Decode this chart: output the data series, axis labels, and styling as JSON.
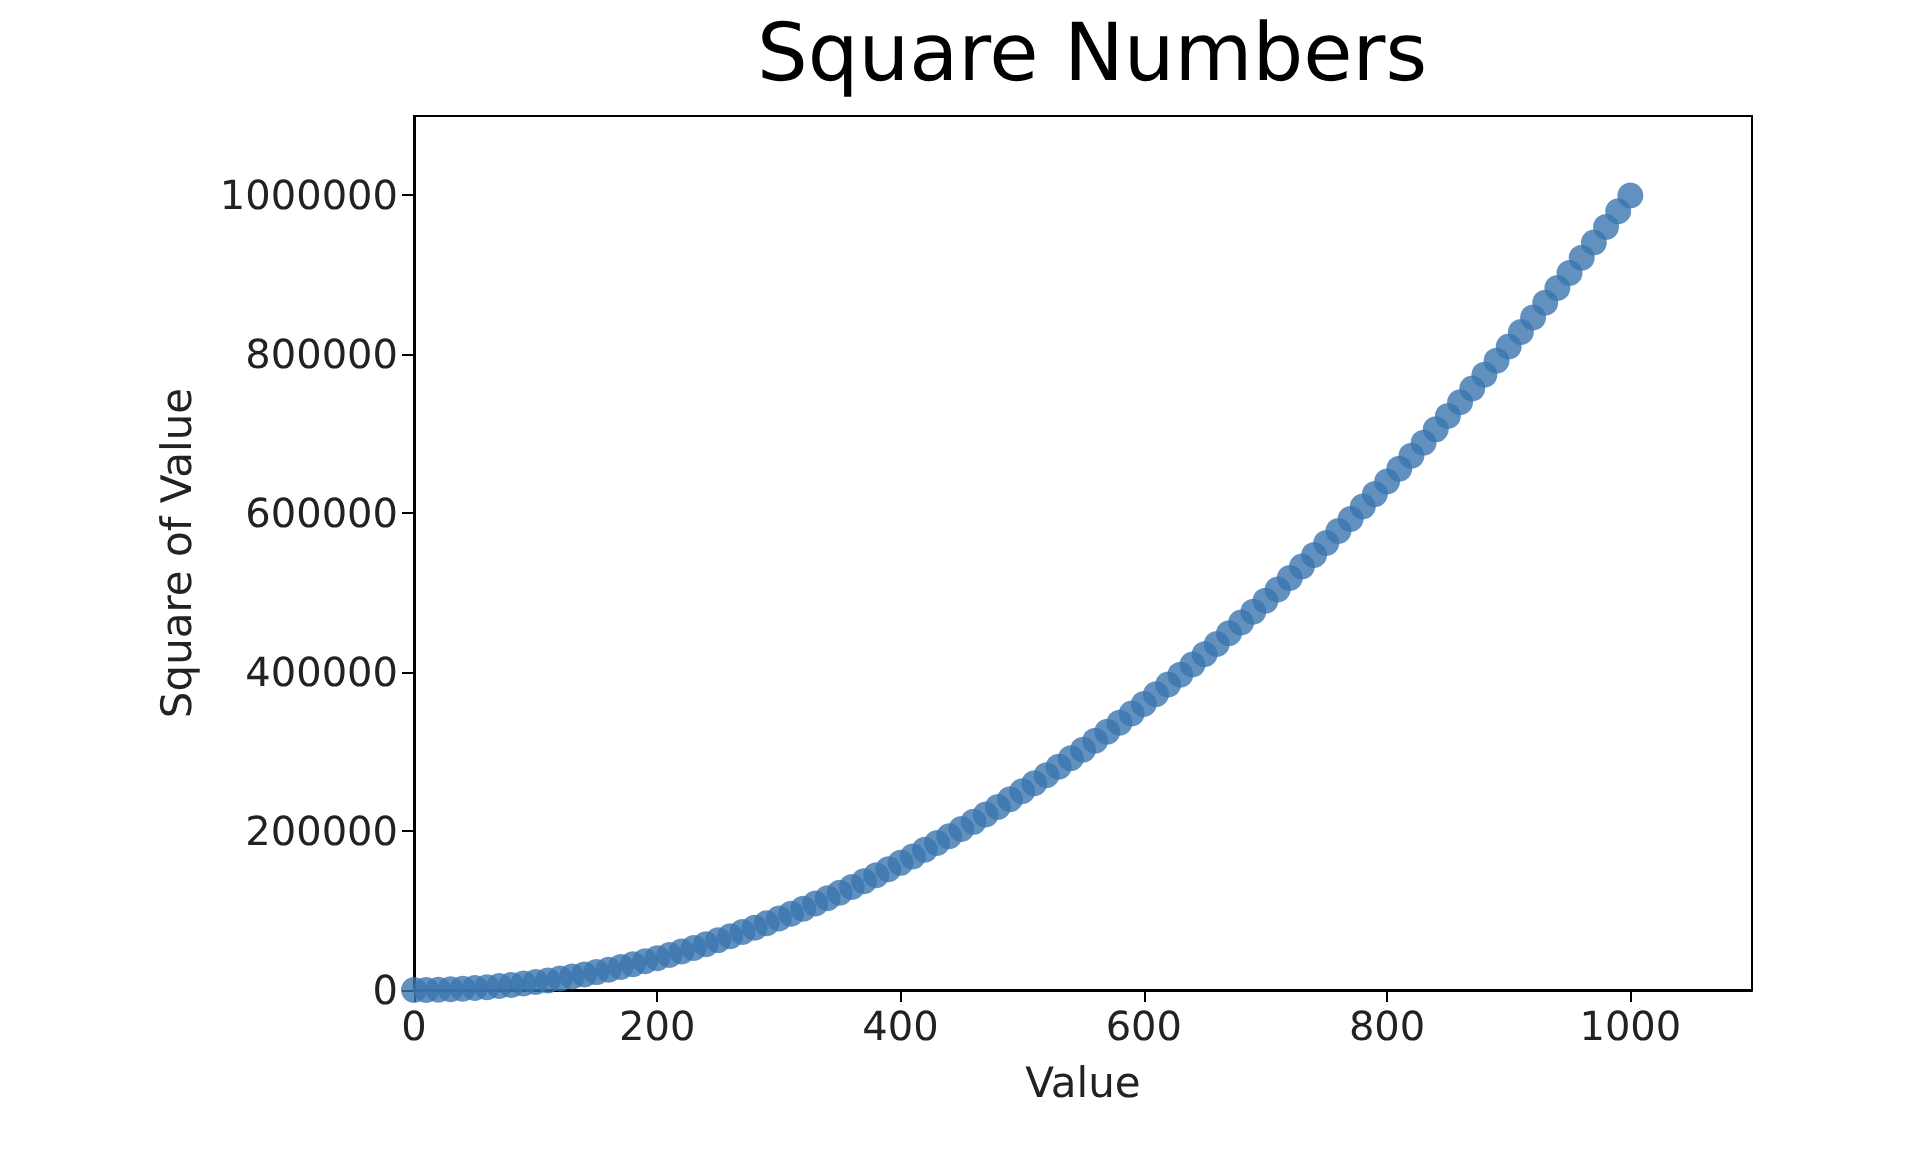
{
  "chart_data": {
    "type": "scatter",
    "title": "Square Numbers",
    "xlabel": "Value",
    "ylabel": "Square of Value",
    "x": [
      0,
      10,
      20,
      30,
      40,
      50,
      60,
      70,
      80,
      90,
      100,
      110,
      120,
      130,
      140,
      150,
      160,
      170,
      180,
      190,
      200,
      210,
      220,
      230,
      240,
      250,
      260,
      270,
      280,
      290,
      300,
      310,
      320,
      330,
      340,
      350,
      360,
      370,
      380,
      390,
      400,
      410,
      420,
      430,
      440,
      450,
      460,
      470,
      480,
      490,
      500,
      510,
      520,
      530,
      540,
      550,
      560,
      570,
      580,
      590,
      600,
      610,
      620,
      630,
      640,
      650,
      660,
      670,
      680,
      690,
      700,
      710,
      720,
      730,
      740,
      750,
      760,
      770,
      780,
      790,
      800,
      810,
      820,
      830,
      840,
      850,
      860,
      870,
      880,
      890,
      900,
      910,
      920,
      930,
      940,
      950,
      960,
      970,
      980,
      990,
      1000
    ],
    "series": [
      {
        "color": "#3b75af",
        "values": [
          0,
          100,
          400,
          900,
          1600,
          2500,
          3600,
          4900,
          6400,
          8100,
          10000,
          12100,
          14400,
          16900,
          19600,
          22500,
          25600,
          28900,
          32400,
          36100,
          40000,
          44100,
          48400,
          52900,
          57600,
          62500,
          67600,
          72900,
          78400,
          84100,
          90000,
          96100,
          102400,
          108900,
          115600,
          122500,
          129600,
          136900,
          144400,
          152100,
          160000,
          168100,
          176400,
          184900,
          193600,
          202500,
          211600,
          220900,
          230400,
          240100,
          250000,
          260100,
          270400,
          280900,
          291600,
          302500,
          313600,
          324900,
          336400,
          348100,
          360000,
          372100,
          384400,
          396900,
          409600,
          422500,
          435600,
          448900,
          462400,
          476100,
          490000,
          504100,
          518400,
          532900,
          547600,
          562500,
          577600,
          592900,
          608400,
          624100,
          640000,
          656100,
          672400,
          688900,
          705600,
          722500,
          739600,
          756900,
          774400,
          792100,
          810000,
          828100,
          846400,
          864900,
          883600,
          902500,
          921600,
          940900,
          960400,
          980100,
          1000000
        ]
      }
    ],
    "xlim": [
      0,
      1100
    ],
    "ylim": [
      0,
      1100000
    ],
    "xticks": [
      0,
      200,
      400,
      600,
      800,
      1000
    ],
    "yticks": [
      0,
      200000,
      400000,
      600000,
      800000,
      1000000
    ],
    "marker": "circle"
  }
}
